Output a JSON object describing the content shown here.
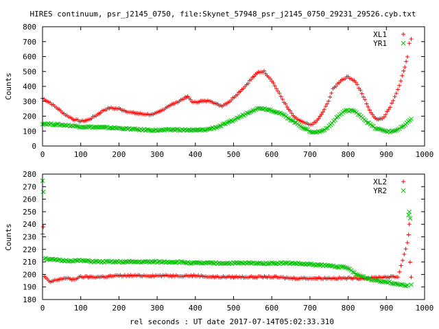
{
  "title": "HIRES continuum, psr_j2145_0750, file:Skynet_57948_psr_j2145_0750_29231_29526.cyb.txt",
  "xlabel": "rel seconds : UT date 2017-07-14T05:02:33.310",
  "colors": {
    "series1": "#ff0000",
    "series2": "#00c000",
    "axes": "#000000"
  },
  "chart_data": [
    {
      "type": "scatter",
      "ylabel": "Counts",
      "xlim": [
        0,
        1000
      ],
      "ylim": [
        0,
        800
      ],
      "xticks": [
        "0",
        "100",
        "200",
        "300",
        "400",
        "500",
        "600",
        "700",
        "800",
        "900",
        "1000"
      ],
      "yticks": [
        "0",
        "100",
        "200",
        "300",
        "400",
        "500",
        "600",
        "700",
        "800"
      ],
      "legend_position": "top-right",
      "series": [
        {
          "name": "XL1",
          "marker": "+",
          "color": "#ff0000",
          "points": [
            [
              0,
              320
            ],
            [
              20,
              290
            ],
            [
              40,
              250
            ],
            [
              60,
              210
            ],
            [
              80,
              180
            ],
            [
              100,
              165
            ],
            [
              120,
              175
            ],
            [
              140,
              205
            ],
            [
              160,
              240
            ],
            [
              175,
              255
            ],
            [
              200,
              250
            ],
            [
              230,
              225
            ],
            [
              260,
              215
            ],
            [
              290,
              210
            ],
            [
              310,
              235
            ],
            [
              330,
              270
            ],
            [
              350,
              290
            ],
            [
              370,
              320
            ],
            [
              380,
              330
            ],
            [
              395,
              290
            ],
            [
              410,
              300
            ],
            [
              425,
              300
            ],
            [
              440,
              305
            ],
            [
              455,
              280
            ],
            [
              470,
              270
            ],
            [
              490,
              300
            ],
            [
              510,
              350
            ],
            [
              530,
              400
            ],
            [
              550,
              460
            ],
            [
              565,
              495
            ],
            [
              580,
              500
            ],
            [
              600,
              440
            ],
            [
              620,
              350
            ],
            [
              640,
              260
            ],
            [
              660,
              190
            ],
            [
              680,
              160
            ],
            [
              700,
              140
            ],
            [
              715,
              160
            ],
            [
              730,
              210
            ],
            [
              745,
              280
            ],
            [
              760,
              380
            ],
            [
              780,
              440
            ],
            [
              800,
              465
            ],
            [
              820,
              430
            ],
            [
              840,
              330
            ],
            [
              860,
              220
            ],
            [
              875,
              180
            ],
            [
              890,
              185
            ],
            [
              910,
              260
            ],
            [
              930,
              380
            ],
            [
              945,
              500
            ],
            [
              955,
              600
            ],
            [
              960,
              690
            ],
            [
              965,
              720
            ]
          ]
        },
        {
          "name": "YR1",
          "marker": "x",
          "color": "#00c000",
          "points": [
            [
              0,
              150
            ],
            [
              30,
              145
            ],
            [
              60,
              140
            ],
            [
              100,
              130
            ],
            [
              150,
              125
            ],
            [
              200,
              120
            ],
            [
              250,
              110
            ],
            [
              300,
              105
            ],
            [
              350,
              110
            ],
            [
              400,
              105
            ],
            [
              430,
              110
            ],
            [
              460,
              130
            ],
            [
              490,
              160
            ],
            [
              520,
              200
            ],
            [
              550,
              240
            ],
            [
              570,
              255
            ],
            [
              600,
              240
            ],
            [
              630,
              210
            ],
            [
              660,
              160
            ],
            [
              690,
              110
            ],
            [
              710,
              90
            ],
            [
              730,
              100
            ],
            [
              750,
              130
            ],
            [
              770,
              190
            ],
            [
              790,
              235
            ],
            [
              810,
              240
            ],
            [
              830,
              210
            ],
            [
              850,
              160
            ],
            [
              870,
              120
            ],
            [
              890,
              105
            ],
            [
              910,
              95
            ],
            [
              930,
              110
            ],
            [
              950,
              140
            ],
            [
              965,
              185
            ]
          ]
        }
      ]
    },
    {
      "type": "scatter",
      "ylabel": "Counts",
      "xlim": [
        0,
        1000
      ],
      "ylim": [
        180,
        280
      ],
      "xticks": [
        "0",
        "100",
        "200",
        "300",
        "400",
        "500",
        "600",
        "700",
        "800",
        "900",
        "1000"
      ],
      "yticks": [
        "180",
        "190",
        "200",
        "210",
        "220",
        "230",
        "240",
        "250",
        "260",
        "270",
        "280"
      ],
      "legend_position": "top-right",
      "series": [
        {
          "name": "XL2",
          "marker": "+",
          "color": "#ff0000",
          "points": [
            [
              0,
              232
            ],
            [
              2,
              238
            ],
            [
              5,
              198
            ],
            [
              20,
              194
            ],
            [
              40,
              196
            ],
            [
              60,
              197
            ],
            [
              80,
              196
            ],
            [
              100,
              198
            ],
            [
              150,
              198
            ],
            [
              200,
              199
            ],
            [
              250,
              199
            ],
            [
              300,
              199
            ],
            [
              350,
              199
            ],
            [
              400,
              199
            ],
            [
              450,
              198
            ],
            [
              500,
              198
            ],
            [
              550,
              198
            ],
            [
              600,
              198
            ],
            [
              650,
              197
            ],
            [
              700,
              197
            ],
            [
              750,
              197
            ],
            [
              800,
              197
            ],
            [
              850,
              197
            ],
            [
              900,
              198
            ],
            [
              930,
              198
            ],
            [
              955,
              225
            ],
            [
              958,
              232
            ],
            [
              960,
              240
            ],
            [
              962,
              210
            ],
            [
              965,
              198
            ]
          ]
        },
        {
          "name": "YR2",
          "marker": "x",
          "color": "#00c000",
          "points": [
            [
              0,
              275
            ],
            [
              2,
              266
            ],
            [
              5,
              213
            ],
            [
              20,
              212
            ],
            [
              50,
              211
            ],
            [
              100,
              211
            ],
            [
              150,
              210
            ],
            [
              200,
              210
            ],
            [
              250,
              210
            ],
            [
              300,
              210
            ],
            [
              350,
              210
            ],
            [
              400,
              209
            ],
            [
              450,
              209
            ],
            [
              500,
              209
            ],
            [
              550,
              209
            ],
            [
              600,
              209
            ],
            [
              650,
              209
            ],
            [
              700,
              208
            ],
            [
              750,
              207
            ],
            [
              780,
              206
            ],
            [
              800,
              205
            ],
            [
              820,
              200
            ],
            [
              840,
              198
            ],
            [
              860,
              196
            ],
            [
              880,
              195
            ],
            [
              900,
              194
            ],
            [
              920,
              193
            ],
            [
              940,
              192
            ],
            [
              955,
              191
            ],
            [
              958,
              248
            ],
            [
              960,
              250
            ],
            [
              962,
              245
            ],
            [
              965,
              192
            ]
          ]
        }
      ]
    }
  ]
}
